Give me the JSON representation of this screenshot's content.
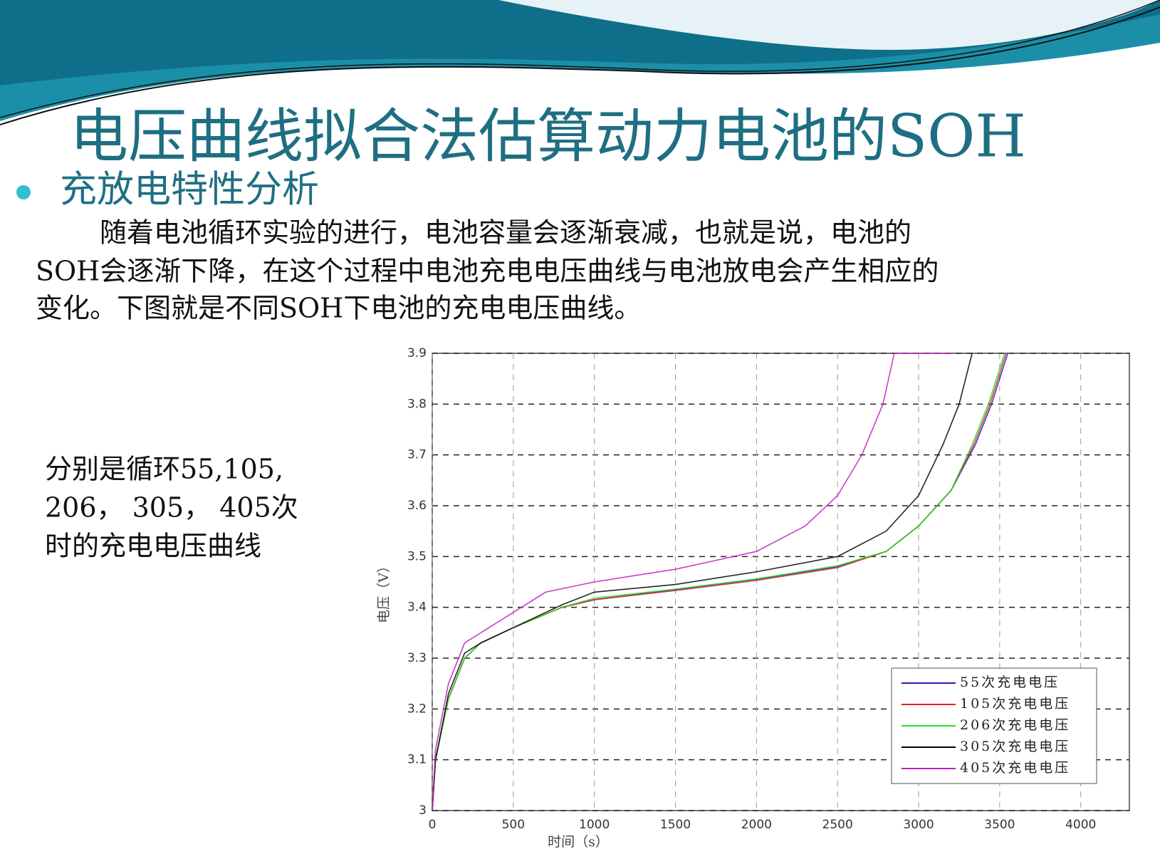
{
  "slide": {
    "title": "电压曲线拟合法估算动力电池的SOH",
    "bullet": "充放电特性分析",
    "paragraph": [
      "随着电池循环实验的进行，电池容量会逐渐衰减，也就是说，电池的",
      "SOH会逐渐下降，在这个过程中电池充电电压曲线与电池放电会产生相应的",
      "变化。下图就是不同SOH下电池的充电电压曲线。"
    ],
    "side_text": [
      "分别是循环55,105,",
      "206， 305， 405次",
      "时的充电电压曲线"
    ]
  },
  "chart_data": {
    "type": "line",
    "x_label": "时间（s）",
    "y_label": "电压（V）",
    "xlim": [
      0,
      4300
    ],
    "ylim": [
      3,
      3.9
    ],
    "xticks": [
      0,
      500,
      1000,
      1500,
      2000,
      2500,
      3000,
      3500,
      4000
    ],
    "yticks": [
      3,
      3.1,
      3.2,
      3.3,
      3.4,
      3.5,
      3.6,
      3.7,
      3.8,
      3.9
    ],
    "grid": true,
    "legend": "lower right",
    "series": [
      {
        "name": "55次充电电压",
        "color": "#2020c0",
        "x": [
          0,
          20,
          100,
          200,
          300,
          500,
          800,
          1000,
          1500,
          2000,
          2500,
          2800,
          3000,
          3200,
          3350,
          3450,
          3550
        ],
        "values": [
          3.0,
          3.1,
          3.22,
          3.3,
          3.33,
          3.36,
          3.4,
          3.415,
          3.435,
          3.455,
          3.48,
          3.51,
          3.56,
          3.63,
          3.72,
          3.8,
          3.9
        ]
      },
      {
        "name": "105次充电电压",
        "color": "#e02020",
        "x": [
          0,
          20,
          100,
          200,
          300,
          500,
          800,
          1000,
          1500,
          2000,
          2500,
          2800,
          3000,
          3200,
          3340,
          3440,
          3540
        ],
        "values": [
          3.0,
          3.1,
          3.22,
          3.3,
          3.33,
          3.36,
          3.4,
          3.415,
          3.433,
          3.453,
          3.478,
          3.51,
          3.56,
          3.63,
          3.72,
          3.8,
          3.9
        ]
      },
      {
        "name": "206次充电电压",
        "color": "#20e020",
        "x": [
          0,
          20,
          100,
          200,
          300,
          500,
          800,
          1000,
          1500,
          2000,
          2500,
          2800,
          3000,
          3200,
          3330,
          3430,
          3530
        ],
        "values": [
          3.0,
          3.1,
          3.22,
          3.3,
          3.33,
          3.36,
          3.4,
          3.418,
          3.436,
          3.456,
          3.482,
          3.51,
          3.56,
          3.63,
          3.72,
          3.8,
          3.9
        ]
      },
      {
        "name": "305次充电电压",
        "color": "#000000",
        "x": [
          0,
          20,
          100,
          200,
          300,
          500,
          800,
          1000,
          1500,
          2000,
          2500,
          2800,
          3000,
          3150,
          3250,
          3330
        ],
        "values": [
          3.0,
          3.1,
          3.23,
          3.31,
          3.33,
          3.36,
          3.405,
          3.43,
          3.445,
          3.47,
          3.5,
          3.55,
          3.62,
          3.72,
          3.8,
          3.9
        ]
      },
      {
        "name": "405次充电电压",
        "color": "#c020c0",
        "x": [
          0,
          20,
          100,
          200,
          400,
          700,
          1000,
          1500,
          2000,
          2300,
          2500,
          2650,
          2780,
          2850,
          3200
        ],
        "values": [
          3.0,
          3.12,
          3.25,
          3.33,
          3.37,
          3.43,
          3.45,
          3.475,
          3.51,
          3.56,
          3.62,
          3.7,
          3.8,
          3.9,
          3.9
        ]
      }
    ]
  }
}
